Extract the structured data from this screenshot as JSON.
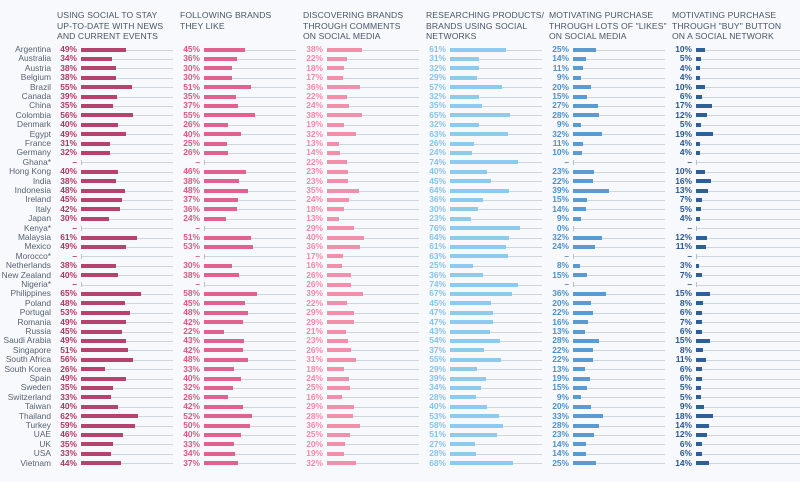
{
  "chart_data": {
    "type": "bar",
    "orientation": "horizontal",
    "grid": false,
    "legend": "none",
    "xlim": [
      0,
      100
    ],
    "unit": "%",
    "missing_marker": "–",
    "categories": [
      "Argentina",
      "Australia",
      "Austria",
      "Belgium",
      "Brazil",
      "Canada",
      "China",
      "Colombia",
      "Denmark",
      "Egypt",
      "France",
      "Germany",
      "Ghana*",
      "Hong Kong",
      "India",
      "Indonesia",
      "Ireland",
      "Italy",
      "Japan",
      "Kenya*",
      "Malaysia",
      "Mexico",
      "Morocco*",
      "Netherlands",
      "New Zealand",
      "Nigeria*",
      "Philippines",
      "Poland",
      "Portugal",
      "Romania",
      "Russia",
      "Saudi Arabia",
      "Singapore",
      "South Africa",
      "South Korea",
      "Spain",
      "Sweden",
      "Switzerland",
      "Taiwan",
      "Thailand",
      "Turkey",
      "UAE",
      "UK",
      "USA",
      "Vietnam"
    ],
    "series": [
      {
        "name": "USING SOCIAL TO STAY\nUP-TO-DATE WITH NEWS\nAND CURRENT EVENTS",
        "color": "#b5426f",
        "values": [
          49,
          34,
          38,
          38,
          55,
          39,
          35,
          56,
          40,
          49,
          31,
          32,
          null,
          40,
          38,
          48,
          45,
          42,
          30,
          null,
          61,
          49,
          null,
          38,
          40,
          null,
          65,
          48,
          53,
          49,
          45,
          49,
          51,
          56,
          26,
          49,
          35,
          33,
          40,
          62,
          59,
          46,
          35,
          33,
          44
        ]
      },
      {
        "name": "FOLLOWING BRANDS\nTHEY LIKE",
        "color": "#e0628f",
        "values": [
          45,
          36,
          30,
          30,
          51,
          35,
          37,
          55,
          26,
          40,
          25,
          26,
          null,
          46,
          38,
          48,
          37,
          36,
          24,
          null,
          51,
          53,
          null,
          30,
          38,
          null,
          58,
          45,
          48,
          42,
          22,
          43,
          42,
          48,
          33,
          40,
          32,
          26,
          42,
          52,
          50,
          40,
          33,
          34,
          37
        ]
      },
      {
        "name": "DISCOVERING BRANDS\nTHROUGH COMMENTS\nON SOCIAL MEDIA",
        "color": "#f28fab",
        "values": [
          38,
          22,
          18,
          17,
          36,
          22,
          24,
          38,
          19,
          32,
          13,
          14,
          22,
          23,
          23,
          35,
          24,
          18,
          13,
          29,
          40,
          36,
          17,
          16,
          26,
          26,
          39,
          22,
          29,
          29,
          21,
          23,
          26,
          31,
          18,
          24,
          25,
          16,
          29,
          28,
          36,
          25,
          20,
          19,
          32
        ]
      },
      {
        "name": "RESEARCHING PRODUCTS/\nBRANDS USING SOCIAL\nNETWORKS",
        "color": "#8ccbee",
        "values": [
          61,
          31,
          32,
          29,
          57,
          32,
          35,
          65,
          32,
          63,
          26,
          24,
          74,
          40,
          45,
          64,
          36,
          30,
          23,
          76,
          64,
          61,
          63,
          25,
          36,
          74,
          67,
          45,
          47,
          47,
          43,
          54,
          37,
          55,
          29,
          39,
          34,
          28,
          40,
          53,
          58,
          51,
          27,
          28,
          68
        ]
      },
      {
        "name": "MOTIVATING PURCHASE\nTHROUGH LOTS OF \"LIKES\"\nON SOCIAL MEDIA",
        "color": "#5b9bd3",
        "values": [
          25,
          14,
          11,
          9,
          20,
          15,
          27,
          28,
          9,
          32,
          11,
          10,
          null,
          23,
          22,
          39,
          15,
          14,
          9,
          0,
          32,
          24,
          null,
          8,
          15,
          null,
          36,
          20,
          22,
          16,
          13,
          28,
          22,
          22,
          13,
          19,
          15,
          9,
          20,
          33,
          28,
          23,
          14,
          14,
          25
        ]
      },
      {
        "name": "MOTIVATING PURCHASE\nTHROUGH \"BUY\" BUTTON\nON A SOCIAL NETWORK",
        "color": "#2f5f98",
        "values": [
          10,
          5,
          4,
          4,
          10,
          6,
          17,
          12,
          5,
          19,
          4,
          4,
          null,
          10,
          16,
          13,
          7,
          5,
          4,
          null,
          12,
          11,
          null,
          3,
          7,
          null,
          15,
          8,
          6,
          7,
          6,
          15,
          8,
          11,
          6,
          6,
          5,
          5,
          9,
          18,
          14,
          12,
          6,
          6,
          14
        ]
      }
    ]
  }
}
